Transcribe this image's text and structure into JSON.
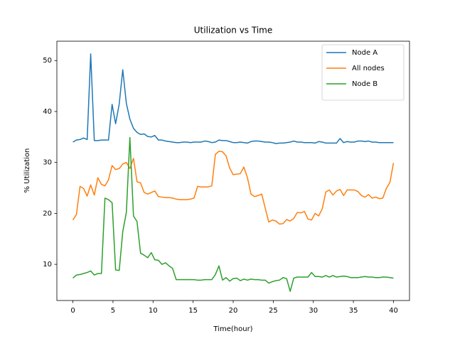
{
  "chart_data": {
    "type": "line",
    "title": "Utilization vs Time",
    "xlabel": "Time(hour)",
    "ylabel": "% Utilization",
    "x": [
      0,
      0.44,
      0.89,
      1.33,
      1.78,
      2.22,
      2.67,
      3.11,
      3.56,
      4,
      4.44,
      4.89,
      5.33,
      5.78,
      6.22,
      6.67,
      7.11,
      7.56,
      8,
      8.44,
      8.89,
      9.33,
      9.78,
      10.22,
      10.67,
      11.11,
      11.56,
      12,
      12.44,
      12.89,
      13.33,
      13.78,
      14.22,
      14.67,
      15.11,
      15.56,
      16,
      16.44,
      16.89,
      17.33,
      17.78,
      18.22,
      18.67,
      19.11,
      19.56,
      20,
      20.44,
      20.89,
      21.33,
      21.78,
      22.22,
      22.67,
      23.11,
      23.56,
      24,
      24.44,
      24.89,
      25.33,
      25.78,
      26.22,
      26.67,
      27.11,
      27.56,
      28,
      28.44,
      28.89,
      29.33,
      29.78,
      30.22,
      30.67,
      31.11,
      31.56,
      32,
      32.44,
      32.89,
      33.33,
      33.78,
      34.22,
      34.67,
      35.11,
      35.56,
      36,
      36.44,
      36.89,
      37.33,
      37.78,
      38.22,
      38.67,
      39.11,
      39.56,
      40
    ],
    "series": [
      {
        "name": "Node A",
        "color": "#1f77b4",
        "values": [
          34.0,
          34.4,
          34.5,
          34.8,
          34.5,
          51.3,
          34.3,
          34.3,
          34.4,
          34.4,
          34.4,
          41.4,
          37.6,
          41.5,
          48.2,
          41.6,
          38.5,
          36.7,
          35.9,
          35.5,
          35.6,
          35.1,
          35.0,
          35.3,
          34.4,
          34.4,
          34.2,
          34.1,
          34.0,
          33.9,
          33.9,
          34.0,
          34.0,
          33.9,
          34.0,
          34.0,
          34.0,
          34.2,
          34.1,
          33.9,
          34.0,
          34.4,
          34.3,
          34.3,
          34.1,
          33.9,
          33.9,
          34.0,
          33.9,
          33.8,
          34.1,
          34.2,
          34.2,
          34.1,
          34.0,
          34.0,
          33.9,
          33.7,
          33.8,
          33.8,
          33.9,
          34.0,
          34.2,
          34.0,
          34.0,
          33.9,
          33.9,
          33.9,
          33.8,
          34.1,
          34.0,
          33.8,
          33.8,
          33.8,
          33.8,
          34.7,
          33.9,
          34.1,
          34.0,
          34.0,
          34.2,
          34.2,
          34.1,
          34.2,
          34.0,
          34.0,
          33.9,
          33.9,
          33.9,
          33.9,
          33.9
        ]
      },
      {
        "name": "All nodes",
        "color": "#ff7f0e",
        "values": [
          18.7,
          19.8,
          25.3,
          24.9,
          23.4,
          25.6,
          23.6,
          27.0,
          25.7,
          25.4,
          26.6,
          29.4,
          28.6,
          28.8,
          29.7,
          30.0,
          28.8,
          30.8,
          26.2,
          26.0,
          24.1,
          23.8,
          24.1,
          24.4,
          23.3,
          23.2,
          23.1,
          23.1,
          23.0,
          22.8,
          22.7,
          22.7,
          22.7,
          22.8,
          23.0,
          25.3,
          25.2,
          25.2,
          25.2,
          25.4,
          31.6,
          32.2,
          32.1,
          31.3,
          28.9,
          27.6,
          27.7,
          27.8,
          29.1,
          27.0,
          23.8,
          23.3,
          23.5,
          23.8,
          21.0,
          18.3,
          18.7,
          18.5,
          17.9,
          18.0,
          18.8,
          18.5,
          19.0,
          20.2,
          20.1,
          20.4,
          18.9,
          18.7,
          20.0,
          19.5,
          20.9,
          24.2,
          24.6,
          23.6,
          24.4,
          24.7,
          23.5,
          24.6,
          24.6,
          24.6,
          24.3,
          23.5,
          23.2,
          23.7,
          23.0,
          23.2,
          22.9,
          23.0,
          24.9,
          26.1,
          29.9
        ]
      },
      {
        "name": "Node B",
        "color": "#2ca02c",
        "values": [
          7.3,
          7.9,
          8.0,
          8.2,
          8.4,
          8.7,
          7.9,
          8.2,
          8.2,
          23.0,
          22.7,
          22.1,
          8.9,
          8.8,
          16.4,
          20.2,
          34.9,
          19.5,
          18.4,
          12.2,
          11.8,
          11.3,
          12.3,
          10.9,
          10.8,
          10.0,
          10.3,
          9.7,
          9.2,
          7.0,
          7.0,
          7.0,
          7.0,
          7.0,
          7.0,
          6.9,
          6.9,
          7.0,
          7.0,
          7.0,
          8.0,
          9.7,
          6.9,
          7.4,
          6.7,
          7.2,
          7.3,
          6.8,
          7.1,
          6.9,
          7.1,
          7.0,
          7.0,
          6.9,
          6.9,
          6.3,
          6.6,
          6.8,
          6.9,
          7.4,
          7.2,
          4.7,
          7.3,
          7.5,
          7.5,
          7.5,
          7.5,
          8.4,
          7.6,
          7.6,
          7.5,
          7.8,
          7.5,
          7.8,
          7.5,
          7.6,
          7.7,
          7.6,
          7.4,
          7.4,
          7.4,
          7.5,
          7.6,
          7.5,
          7.5,
          7.4,
          7.4,
          7.5,
          7.5,
          7.4,
          7.3
        ]
      }
    ],
    "xlim": [
      -2,
      42
    ],
    "ylim": [
      2.9,
      53.8
    ],
    "xticks": [
      0,
      5,
      10,
      15,
      20,
      25,
      30,
      35,
      40
    ],
    "yticks": [
      10,
      20,
      30,
      40,
      50
    ],
    "legend": "upper right",
    "grid": false
  }
}
